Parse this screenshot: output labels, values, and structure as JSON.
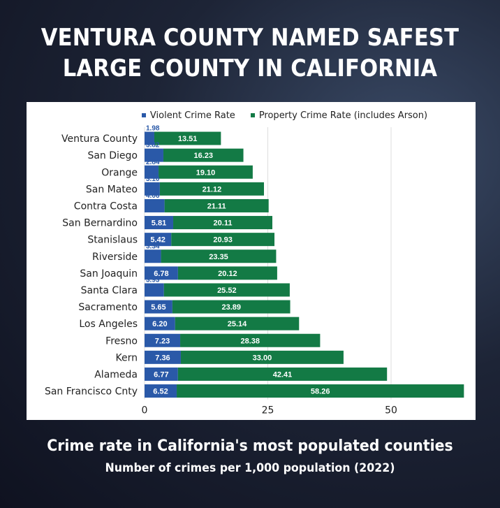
{
  "headline": {
    "line1": "VENTURA COUNTY NAMED SAFEST",
    "line2": "LARGE COUNTY IN CALIFORNIA"
  },
  "caption": {
    "main": "Crime rate in California's most populated counties",
    "sub": "Number of crimes per 1,000 population (2022)"
  },
  "colors": {
    "violent": "#2a59a8",
    "property": "#137a45",
    "grid": "#dddddd",
    "label": "#ffffff"
  },
  "chart_data": {
    "type": "bar",
    "orientation": "horizontal",
    "stacked": true,
    "categories": [
      "Ventura County",
      "San Diego",
      "Orange",
      "San Mateo",
      "Contra Costa",
      "San Bernardino",
      "Stanislaus",
      "Riverside",
      "San Joaquin",
      "Santa Clara",
      "Sacramento",
      "Los Angeles",
      "Fresno",
      "Kern",
      "Alameda",
      "San Francisco Cnty"
    ],
    "series": [
      {
        "name": "Violent Crime Rate",
        "values": [
          1.98,
          3.82,
          2.84,
          3.1,
          4.06,
          5.81,
          5.42,
          3.34,
          6.78,
          3.93,
          5.65,
          6.2,
          7.23,
          7.36,
          6.77,
          6.52
        ],
        "labels": [
          "1.98",
          "3.82",
          "2.84",
          "3.10",
          "4.06",
          "5.81",
          "5.42",
          "3.34",
          "6.78",
          "3.93",
          "5.65",
          "6.20",
          "7.23",
          "7.36",
          "6.77",
          "6.52"
        ]
      },
      {
        "name": "Property Crime Rate (includes Arson)",
        "values": [
          13.51,
          16.23,
          19.1,
          21.12,
          21.11,
          20.11,
          20.93,
          23.35,
          20.12,
          25.52,
          23.89,
          25.14,
          28.38,
          33.0,
          42.41,
          58.26
        ],
        "labels": [
          "13.51",
          "16.23",
          "19.10",
          "21.12",
          "21.11",
          "20.11",
          "20.93",
          "23.35",
          "20.12",
          "25.52",
          "23.89",
          "25.14",
          "28.38",
          "33.00",
          "42.41",
          "58.26"
        ]
      }
    ],
    "x_ticks": [
      0,
      25,
      50
    ],
    "x_tick_labels": [
      "0",
      "25",
      "50"
    ],
    "xlim": [
      0,
      65
    ],
    "grid": true,
    "legend_position": "top"
  }
}
